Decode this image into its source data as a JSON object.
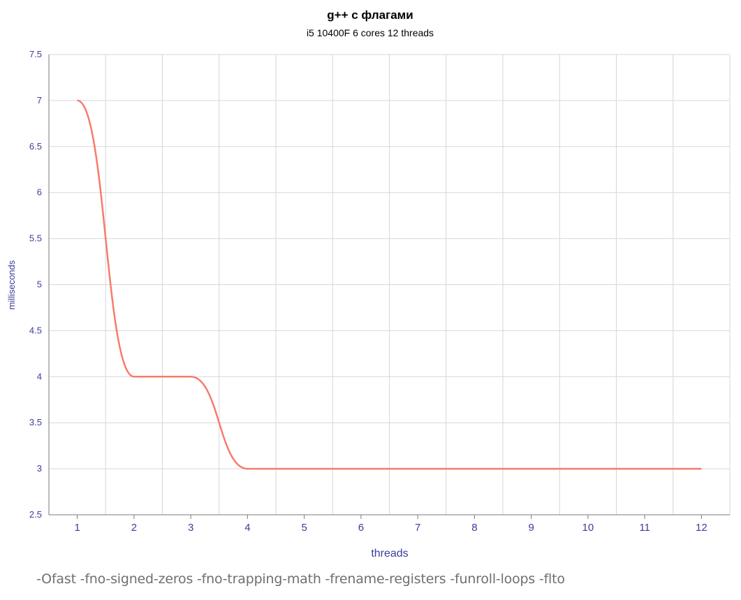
{
  "footer": {
    "flags": "-Ofast -fno-signed-zeros -fno-trapping-math -frename-registers -funroll-loops -flto"
  },
  "colors": {
    "line": "#f77b6d",
    "axis_text": "#3c3c9c",
    "grid": "#d6d6df",
    "axis": "#7a7a7a",
    "title": "#000000"
  },
  "chart_data": {
    "type": "line",
    "title": "g++ с флагами",
    "subtitle": "i5 10400F 6 cores 12 threads",
    "xlabel": "threads",
    "ylabel": "milliseconds",
    "x": [
      1,
      2,
      3,
      4,
      5,
      6,
      7,
      8,
      9,
      10,
      11,
      12
    ],
    "series": [
      {
        "values": [
          7,
          4,
          4,
          3,
          3,
          3,
          3,
          3,
          3,
          3,
          3,
          3
        ]
      }
    ],
    "xlim": [
      0.5,
      12.5
    ],
    "ylim": [
      2.5,
      7.5
    ],
    "yticks": [
      "2.5",
      "3",
      "3.5",
      "4",
      "4.5",
      "5",
      "5.5",
      "6",
      "6.5",
      "7",
      "7.5"
    ],
    "xticks": [
      "1",
      "2",
      "3",
      "4",
      "5",
      "6",
      "7",
      "8",
      "9",
      "10",
      "11",
      "12"
    ],
    "grid": true,
    "curve": "smooth"
  }
}
